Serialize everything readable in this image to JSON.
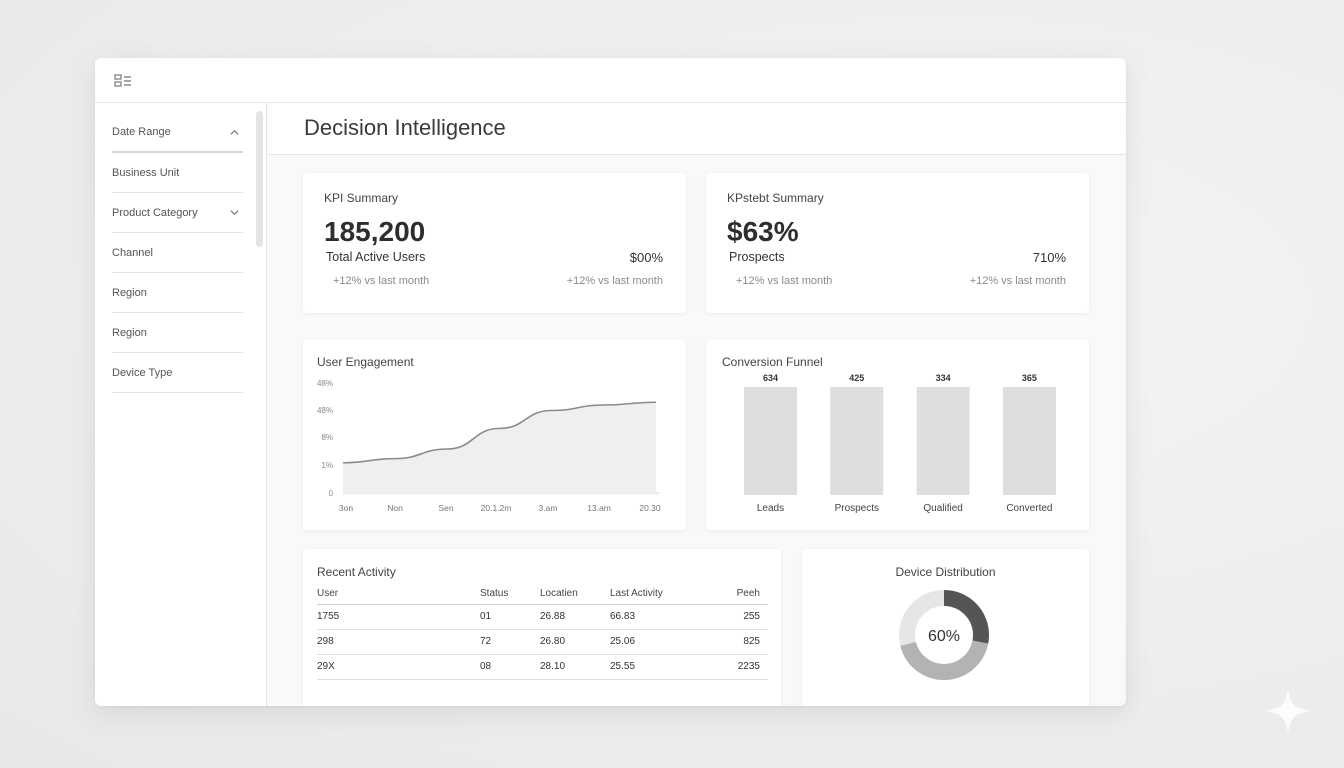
{
  "app": {
    "menu_icon": "grid-menu-icon"
  },
  "sidebar": {
    "filters": [
      {
        "label": "Date Range",
        "icon": "chevron-up-icon"
      },
      {
        "label": "Business Unit",
        "icon": ""
      },
      {
        "label": "Product Category",
        "icon": "chevron-down-icon"
      },
      {
        "label": "Channel",
        "icon": ""
      },
      {
        "label": "Region",
        "icon": ""
      },
      {
        "label": "Region",
        "icon": ""
      },
      {
        "label": "Device Type",
        "icon": ""
      }
    ]
  },
  "page": {
    "title": "Decision Intelligence"
  },
  "kpi_cards": [
    {
      "title": "KPI Summary",
      "value": "185,200",
      "label": "Total Active Users",
      "delta": "+12% vs last month",
      "side_value": "$00%",
      "side_delta": "+12% vs last month"
    },
    {
      "title": "KPstebt Summary",
      "value": "$63%",
      "label": "Prospects",
      "delta": "+12% vs last month",
      "side_value": "710%",
      "side_delta": "+12% vs last month"
    }
  ],
  "engagement": {
    "title": "User Engagement",
    "y_ticks": [
      "48%",
      "48%",
      "8%",
      "1%",
      "0"
    ],
    "x_ticks": [
      "3on",
      "Non",
      "Sen",
      "20.1.2m",
      "3.am",
      "13.am",
      "20.30"
    ]
  },
  "funnel": {
    "title": "Conversion Funnel"
  },
  "activity": {
    "title": "Recent Activity",
    "columns": [
      "User",
      "Status",
      "Locatien",
      "Last Activity",
      "Peeh"
    ],
    "rows": [
      [
        "1755",
        "01",
        "26.88",
        "66.83",
        "255"
      ],
      [
        "298",
        "72",
        "26.80",
        "25.06",
        "825"
      ],
      [
        "29X",
        "08",
        "28.10",
        "25.55",
        "2235"
      ]
    ]
  },
  "device": {
    "title": "Device Distribution",
    "center_label": "60%",
    "dark_share": 0.28,
    "mid_share": 0.43
  },
  "colors": {
    "line": "#8a8a8a",
    "area": "#efefef",
    "bar": "#dedede",
    "donut_dark": "#555555",
    "donut_mid": "#b3b3b3",
    "donut_light": "#e6e6e6"
  },
  "chart_data": {
    "type": "line",
    "title": "User Engagement",
    "x": [
      "3on",
      "Non",
      "Sen",
      "20.1.2m",
      "3.am",
      "13.am",
      "20.30"
    ],
    "series": [
      {
        "values": [
          1.1,
          1.25,
          1.6,
          2.35,
          3.0,
          3.2,
          3.3
        ]
      }
    ],
    "ylim": [
      0,
      4
    ],
    "funnel": {
      "type": "bar",
      "categories": [
        "Leads",
        "Prospects",
        "Qualified",
        "Converted"
      ],
      "values": [
        634,
        425,
        334,
        365
      ],
      "value_labels": [
        "634",
        "425",
        "334",
        "365"
      ]
    }
  }
}
